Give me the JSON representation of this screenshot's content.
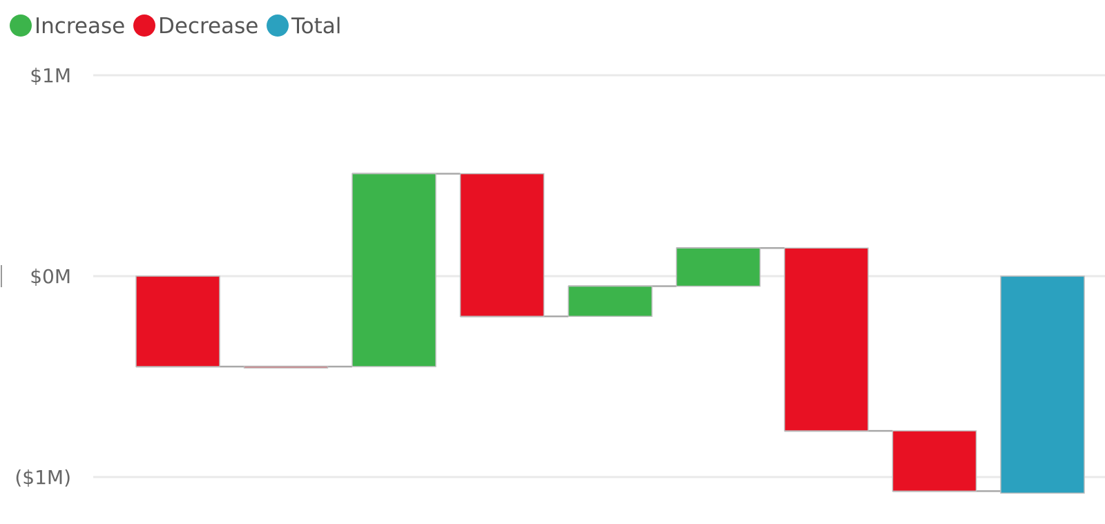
{
  "chart_data": {
    "type": "waterfall",
    "title": "",
    "xlabel": "",
    "ylabel": "",
    "ylim": [
      -1.0,
      1.0
    ],
    "y_ticks": [
      {
        "value": 1,
        "label": "$1M"
      },
      {
        "value": 0,
        "label": "$0M"
      },
      {
        "value": -1,
        "label": "($1M)"
      }
    ],
    "grid": true,
    "legend_position": "top-left",
    "legend": [
      {
        "key": "increase",
        "label": "Increase",
        "color": "#3cb44b"
      },
      {
        "key": "decrease",
        "label": "Decrease",
        "color": "#e81123"
      },
      {
        "key": "total",
        "label": "Total",
        "color": "#2ba1bf"
      }
    ],
    "steps": [
      {
        "kind": "decrease",
        "value": -0.45
      },
      {
        "kind": "decrease",
        "value": 0.0
      },
      {
        "kind": "increase",
        "value": 0.96
      },
      {
        "kind": "decrease",
        "value": -0.71
      },
      {
        "kind": "increase",
        "value": 0.15
      },
      {
        "kind": "increase",
        "value": 0.19
      },
      {
        "kind": "decrease",
        "value": -0.91
      },
      {
        "kind": "decrease",
        "value": -0.3
      },
      {
        "kind": "total",
        "value": -1.08
      }
    ]
  }
}
